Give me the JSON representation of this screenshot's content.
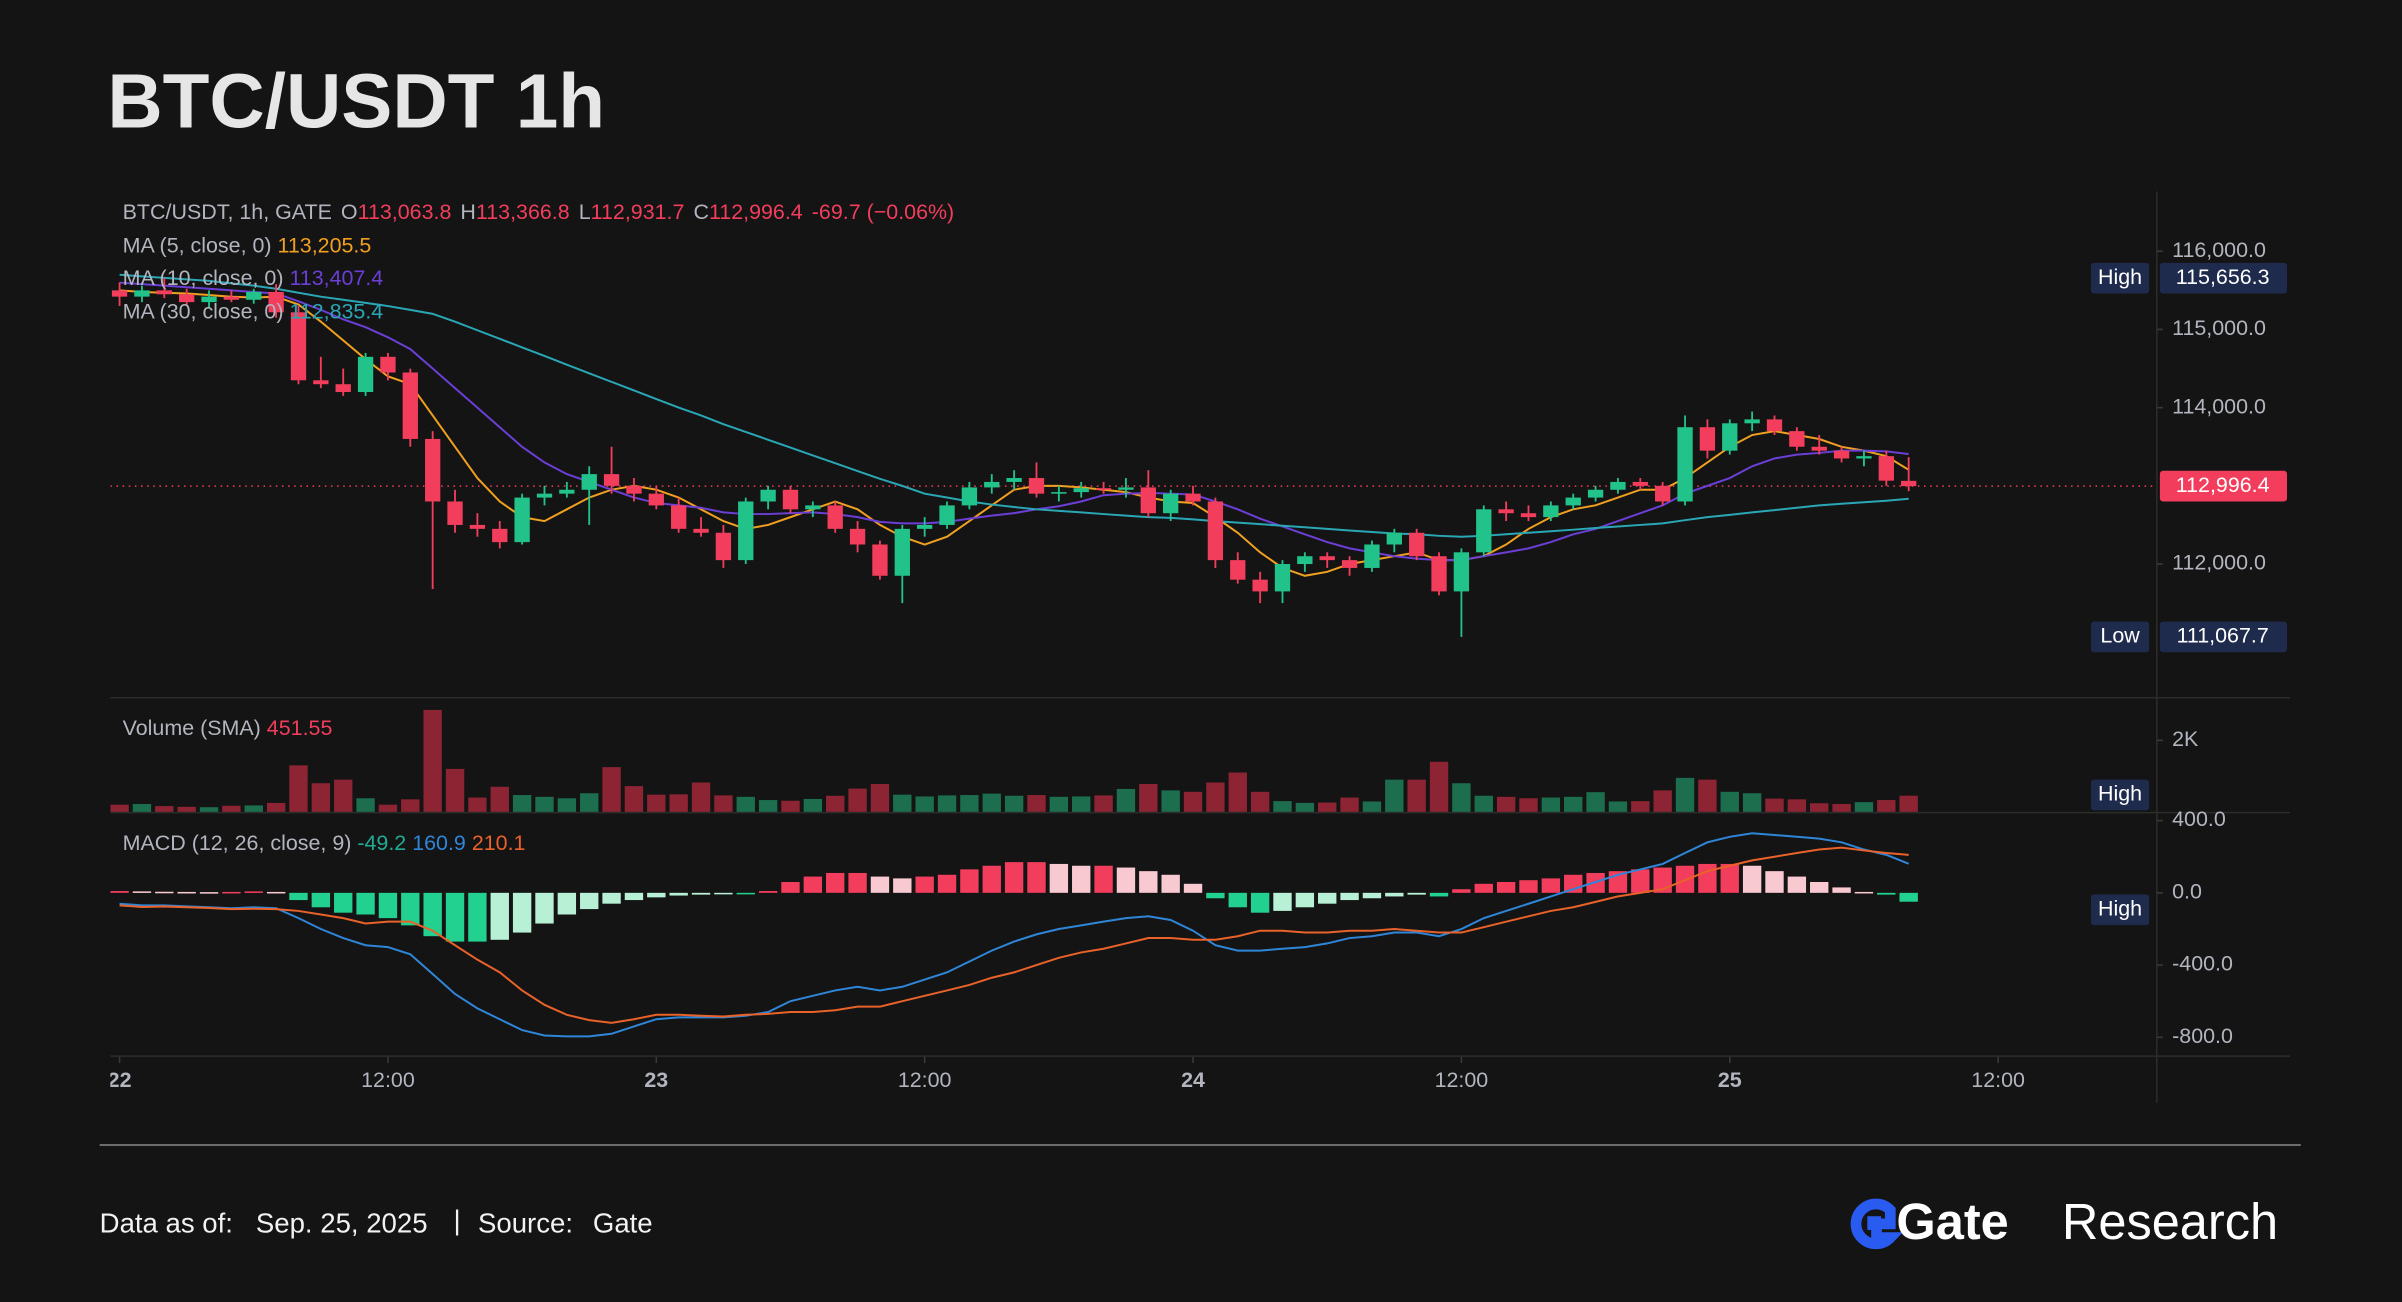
{
  "header": {
    "title": "BTC/USDT 1h"
  },
  "chart_data": {
    "type": "candlestick",
    "legend": {
      "symbol": "BTC/USDT, 1h, GATE",
      "open_key": "O",
      "open": "113,063.8",
      "high_key": "H",
      "high": "113,366.8",
      "low_key": "L",
      "low": "112,931.7",
      "close_key": "C",
      "close": "112,996.4",
      "change": "-69.7",
      "change_percent": "(−0.06%)"
    },
    "up_color": "#22c38a",
    "down_color": "#f23d5c",
    "candles": [
      [
        115500,
        115600,
        115300,
        115420
      ],
      [
        115420,
        115560,
        115350,
        115500
      ],
      [
        115500,
        115656.3,
        115400,
        115450
      ],
      [
        115450,
        115520,
        115300,
        115350
      ],
      [
        115350,
        115500,
        115280,
        115420
      ],
      [
        115420,
        115500,
        115350,
        115380
      ],
      [
        115380,
        115520,
        115330,
        115480
      ],
      [
        115480,
        115580,
        115150,
        115220
      ],
      [
        115220,
        115300,
        114300,
        114350
      ],
      [
        114350,
        114650,
        114250,
        114300
      ],
      [
        114300,
        114500,
        114150,
        114200
      ],
      [
        114200,
        114700,
        114150,
        114650
      ],
      [
        114650,
        114700,
        114350,
        114450
      ],
      [
        114450,
        114500,
        113500,
        113600
      ],
      [
        113600,
        113700,
        111680,
        112800
      ],
      [
        112800,
        112950,
        112400,
        112500
      ],
      [
        112500,
        112650,
        112350,
        112450
      ],
      [
        112450,
        112550,
        112200,
        112280
      ],
      [
        112280,
        112900,
        112250,
        112850
      ],
      [
        112850,
        113000,
        112750,
        112900
      ],
      [
        112900,
        113050,
        112850,
        112950
      ],
      [
        112950,
        113250,
        112500,
        113150
      ],
      [
        113150,
        113500,
        112900,
        113000
      ],
      [
        113000,
        113100,
        112800,
        112900
      ],
      [
        112900,
        113000,
        112700,
        112750
      ],
      [
        112750,
        112850,
        112400,
        112450
      ],
      [
        112450,
        112600,
        112350,
        112400
      ],
      [
        112400,
        112500,
        111950,
        112050
      ],
      [
        112050,
        112850,
        112000,
        112800
      ],
      [
        112800,
        113000,
        112700,
        112950
      ],
      [
        112950,
        113000,
        112650,
        112700
      ],
      [
        112700,
        112800,
        112600,
        112750
      ],
      [
        112750,
        112800,
        112400,
        112450
      ],
      [
        112450,
        112550,
        112150,
        112250
      ],
      [
        112250,
        112300,
        111800,
        111850
      ],
      [
        111850,
        112500,
        111500,
        112450
      ],
      [
        112450,
        112600,
        112350,
        112500
      ],
      [
        112500,
        112800,
        112450,
        112750
      ],
      [
        112750,
        113050,
        112700,
        112980
      ],
      [
        112980,
        113150,
        112900,
        113050
      ],
      [
        113050,
        113200,
        112950,
        113100
      ],
      [
        113100,
        113300,
        112850,
        112900
      ],
      [
        112900,
        113000,
        112800,
        112920
      ],
      [
        112920,
        113050,
        112850,
        112970
      ],
      [
        112970,
        113050,
        112900,
        112950
      ],
      [
        112950,
        113100,
        112850,
        112980
      ],
      [
        112980,
        113200,
        112600,
        112650
      ],
      [
        112650,
        112950,
        112550,
        112900
      ],
      [
        112900,
        113000,
        112750,
        112800
      ],
      [
        112800,
        112850,
        111950,
        112050
      ],
      [
        112050,
        112150,
        111750,
        111800
      ],
      [
        111800,
        111900,
        111500,
        111650
      ],
      [
        111650,
        112050,
        111500,
        112000
      ],
      [
        112000,
        112150,
        111900,
        112100
      ],
      [
        112100,
        112150,
        111950,
        112050
      ],
      [
        112050,
        112100,
        111850,
        111950
      ],
      [
        111950,
        112300,
        111900,
        112250
      ],
      [
        112250,
        112450,
        112150,
        112400
      ],
      [
        112400,
        112450,
        112050,
        112100
      ],
      [
        112100,
        112150,
        111600,
        111650
      ],
      [
        111650,
        112200,
        111067.7,
        112150
      ],
      [
        112150,
        112750,
        112100,
        112700
      ],
      [
        112700,
        112800,
        112550,
        112650
      ],
      [
        112650,
        112750,
        112550,
        112600
      ],
      [
        112600,
        112800,
        112550,
        112750
      ],
      [
        112750,
        112900,
        112700,
        112850
      ],
      [
        112850,
        113000,
        112800,
        112950
      ],
      [
        112950,
        113100,
        112900,
        113050
      ],
      [
        113050,
        113100,
        112950,
        113000
      ],
      [
        113000,
        113050,
        112750,
        112800
      ],
      [
        112800,
        113900,
        112750,
        113750
      ],
      [
        113750,
        113850,
        113350,
        113450
      ],
      [
        113450,
        113850,
        113400,
        113800
      ],
      [
        113800,
        113950,
        113700,
        113850
      ],
      [
        113850,
        113900,
        113650,
        113700
      ],
      [
        113700,
        113750,
        113450,
        113500
      ],
      [
        113500,
        113650,
        113400,
        113450
      ],
      [
        113450,
        113500,
        113300,
        113350
      ],
      [
        113350,
        113450,
        113250,
        113380
      ],
      [
        113380,
        113450,
        113000,
        113066.1
      ],
      [
        113063.8,
        113366.8,
        112931.7,
        112996.4
      ]
    ],
    "xticks": [
      {
        "value": 0,
        "label": "22"
      },
      {
        "value": 12,
        "label": "12:00"
      },
      {
        "value": 24,
        "label": "23"
      },
      {
        "value": 36,
        "label": "12:00"
      },
      {
        "value": 48,
        "label": "24"
      },
      {
        "value": 60,
        "label": "12:00"
      },
      {
        "value": 72,
        "label": "25"
      },
      {
        "value": 84,
        "label": "12:00"
      }
    ],
    "ylim": [
      110300,
      116765
    ],
    "yticks": [
      {
        "value": 112000,
        "label": "112,000.0"
      },
      {
        "value": 114000,
        "label": "114,000.0"
      },
      {
        "value": 115000,
        "label": "115,000.0"
      },
      {
        "value": 116000,
        "label": "116,000.0"
      }
    ],
    "high": {
      "text": "High",
      "value": 115656.3,
      "label": "115,656.3"
    },
    "low": {
      "text": "Low",
      "value": 111067.7,
      "label": "111,067.7"
    },
    "last_price": {
      "value": 112996.4,
      "label": "112,996.4"
    },
    "ma": [
      {
        "name": "MA (5, close, 0)",
        "color": "#f0a020",
        "last_label": "113,205.5",
        "values": [
          115500,
          115480,
          115470,
          115460,
          115440,
          115420,
          115410,
          115420,
          115320,
          115100,
          114860,
          114620,
          114400,
          114300,
          113900,
          113500,
          113100,
          112800,
          112600,
          112550,
          112700,
          112850,
          112950,
          113000,
          112950,
          112850,
          112700,
          112550,
          112450,
          112500,
          112600,
          112700,
          112800,
          112700,
          112500,
          112350,
          112250,
          112350,
          112550,
          112750,
          112950,
          113000,
          113000,
          112980,
          112950,
          112920,
          112850,
          112800,
          112780,
          112600,
          112400,
          112150,
          111950,
          111850,
          111900,
          112000,
          112050,
          112100,
          112150,
          112050,
          112050,
          112100,
          112250,
          112450,
          112600,
          112700,
          112750,
          112850,
          112950,
          112950,
          113100,
          113300,
          113500,
          113650,
          113700,
          113650,
          113600,
          113500,
          113450,
          113380,
          113205.5
        ]
      },
      {
        "name": "MA (10, close, 0)",
        "color": "#6b3fd6",
        "last_label": "113,407.4",
        "values": [
          115600,
          115580,
          115560,
          115540,
          115520,
          115500,
          115480,
          115460,
          115360,
          115250,
          115130,
          115030,
          114900,
          114750,
          114500,
          114250,
          114000,
          113750,
          113500,
          113300,
          113150,
          113050,
          112950,
          112850,
          112780,
          112750,
          112720,
          112660,
          112640,
          112640,
          112650,
          112660,
          112640,
          112600,
          112540,
          112520,
          112520,
          112540,
          112580,
          112620,
          112650,
          112700,
          112740,
          112800,
          112880,
          112900,
          112910,
          112900,
          112890,
          112800,
          112700,
          112580,
          112480,
          112380,
          112280,
          112200,
          112150,
          112100,
          112070,
          112050,
          112050,
          112100,
          112150,
          112200,
          112280,
          112380,
          112450,
          112550,
          112650,
          112750,
          112900,
          113000,
          113100,
          113250,
          113350,
          113400,
          113420,
          113450,
          113450,
          113440,
          113407.4
        ]
      },
      {
        "name": "MA (30, close, 0)",
        "color": "#2aa7b5",
        "last_label": "112,835.4",
        "values": [
          115700,
          115680,
          115660,
          115640,
          115620,
          115590,
          115560,
          115520,
          115470,
          115420,
          115380,
          115340,
          115300,
          115250,
          115200,
          115100,
          114990,
          114880,
          114770,
          114660,
          114550,
          114440,
          114330,
          114220,
          114110,
          114000,
          113900,
          113790,
          113690,
          113590,
          113490,
          113390,
          113290,
          113190,
          113090,
          113000,
          112900,
          112850,
          112800,
          112760,
          112730,
          112700,
          112680,
          112660,
          112640,
          112620,
          112600,
          112590,
          112570,
          112550,
          112530,
          112510,
          112490,
          112470,
          112450,
          112430,
          112410,
          112390,
          112380,
          112360,
          112350,
          112360,
          112380,
          112400,
          112420,
          112440,
          112460,
          112480,
          112500,
          112520,
          112560,
          112600,
          112630,
          112660,
          112690,
          112720,
          112750,
          112770,
          112790,
          112810,
          112835.4
        ]
      }
    ],
    "volume": {
      "name": "Volume (SMA)",
      "last_label": "451.55",
      "badge": "High",
      "up_color": "#1c6e4f",
      "down_color": "#8c2433",
      "ylim": [
        0,
        3170
      ],
      "yticks": [
        {
          "value": 2000,
          "label": "2K"
        }
      ],
      "values": [
        200,
        220,
        160,
        140,
        130,
        170,
        180,
        250,
        1300,
        800,
        900,
        380,
        200,
        350,
        2850,
        1200,
        400,
        700,
        470,
        420,
        380,
        520,
        1250,
        720,
        480,
        490,
        820,
        460,
        420,
        330,
        310,
        360,
        450,
        650,
        780,
        480,
        430,
        460,
        470,
        510,
        450,
        470,
        420,
        430,
        460,
        640,
        780,
        600,
        560,
        820,
        1100,
        560,
        300,
        250,
        260,
        400,
        290,
        900,
        900,
        1400,
        800,
        450,
        420,
        380,
        400,
        420,
        550,
        290,
        300,
        600,
        950,
        900,
        560,
        520,
        370,
        350,
        240,
        220,
        270,
        330,
        451.55
      ]
    },
    "macd": {
      "name": "MACD (12, 26, close, 9)",
      "badge": "High",
      "ylim": [
        -900,
        440
      ],
      "yticks": [
        {
          "value": 400,
          "label": "400.0"
        },
        {
          "value": 0,
          "label": "0.0"
        },
        {
          "value": -400,
          "label": "-400.0"
        },
        {
          "value": -800,
          "label": "-800.0"
        }
      ],
      "histogram": {
        "last_label": "-49.2",
        "colors": {
          "rising_positive": "#f23d5c",
          "falling_positive": "#f9c9d1",
          "falling_negative": "#22d18f",
          "rising_negative": "#b8f0d6"
        },
        "values": [
          10,
          8,
          6,
          5,
          4,
          5,
          8,
          5,
          -40,
          -80,
          -110,
          -120,
          -140,
          -180,
          -240,
          -270,
          -270,
          -260,
          -220,
          -170,
          -120,
          -90,
          -60,
          -40,
          -25,
          -15,
          -10,
          -5,
          -5,
          10,
          60,
          90,
          110,
          110,
          90,
          80,
          90,
          100,
          130,
          150,
          170,
          170,
          160,
          150,
          150,
          140,
          120,
          100,
          50,
          -30,
          -80,
          -110,
          -100,
          -80,
          -60,
          -40,
          -30,
          -20,
          -10,
          -20,
          20,
          50,
          60,
          70,
          80,
          100,
          110,
          120,
          130,
          140,
          150,
          160,
          160,
          150,
          120,
          90,
          60,
          30,
          5,
          -10,
          -49.2
        ]
      },
      "series": [
        {
          "color": "#2f86d8",
          "last_label": "160.9",
          "values": [
            -60,
            -70,
            -70,
            -75,
            -80,
            -85,
            -80,
            -85,
            -140,
            -200,
            -250,
            -290,
            -300,
            -340,
            -450,
            -560,
            -640,
            -700,
            -760,
            -790,
            -795,
            -795,
            -780,
            -740,
            -700,
            -690,
            -690,
            -690,
            -680,
            -660,
            -600,
            -570,
            -540,
            -520,
            -540,
            -520,
            -480,
            -440,
            -380,
            -320,
            -270,
            -230,
            -200,
            -180,
            -160,
            -140,
            -130,
            -150,
            -210,
            -290,
            -320,
            -320,
            -310,
            -300,
            -280,
            -250,
            -240,
            -220,
            -220,
            -240,
            -200,
            -140,
            -100,
            -60,
            -20,
            20,
            60,
            100,
            130,
            160,
            220,
            280,
            310,
            330,
            320,
            310,
            300,
            280,
            240,
            210,
            160.9
          ]
        },
        {
          "color": "#e8622a",
          "last_label": "210.1",
          "values": [
            -70,
            -78,
            -76,
            -80,
            -84,
            -90,
            -88,
            -90,
            -100,
            -120,
            -140,
            -170,
            -160,
            -160,
            -210,
            -290,
            -370,
            -440,
            -540,
            -620,
            -675,
            -705,
            -720,
            -700,
            -675,
            -675,
            -680,
            -685,
            -675,
            -670,
            -660,
            -660,
            -650,
            -630,
            -630,
            -600,
            -570,
            -540,
            -510,
            -470,
            -440,
            -400,
            -360,
            -330,
            -310,
            -280,
            -250,
            -250,
            -260,
            -260,
            -240,
            -210,
            -210,
            -220,
            -220,
            -210,
            -210,
            -200,
            -210,
            -220,
            -220,
            -190,
            -160,
            -130,
            -100,
            -80,
            -50,
            -20,
            0,
            20,
            70,
            120,
            150,
            180,
            200,
            220,
            240,
            250,
            235,
            220,
            210.1
          ]
        }
      ]
    }
  },
  "footer": {
    "as_of_label": "Data as of:",
    "date": "Sep. 25, 2025",
    "separator": "|",
    "source_label": "Source:",
    "source": "Gate",
    "brand": "Gate",
    "brand_suffix": "Research"
  }
}
